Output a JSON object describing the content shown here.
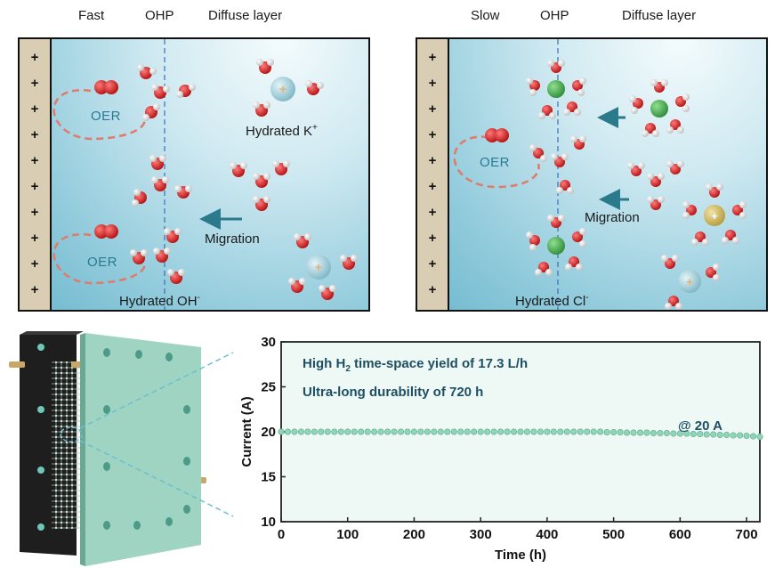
{
  "left_panel": {
    "headers": [
      "Fast",
      "OHP",
      "Diffuse layer"
    ],
    "oer_labels": [
      "OER",
      "OER"
    ],
    "hydrated_cation_label": "Hydrated K",
    "hydrated_cation_sup": "+",
    "migration_label": "Migration",
    "hydrated_anion_label": "Hydrated OH",
    "hydrated_anion_sup": "-",
    "electrode_signs": [
      "+",
      "+",
      "+",
      "+",
      "+",
      "+",
      "+",
      "+",
      "+",
      "+"
    ]
  },
  "right_panel": {
    "headers": [
      "Slow",
      "OHP",
      "Diffuse layer"
    ],
    "oer_label": "OER",
    "migration_label": "Migration",
    "hydrated_anion_label": "Hydrated Cl",
    "hydrated_anion_sup": "-",
    "electrode_signs": [
      "+",
      "+",
      "+",
      "+",
      "+",
      "+",
      "+",
      "+",
      "+",
      "+"
    ]
  },
  "annotations": {
    "yield_prefix": "High H",
    "yield_sub": "2",
    "yield_suffix": " time-space  yield of 17.3 L/h",
    "durability": "Ultra-long durability of 720 h",
    "current_note": "@ 20 A"
  },
  "colors": {
    "electrolyte_light": "#f4fbfd",
    "electrolyte_dark": "#6fb8cf",
    "electrode": "#d9ceb4",
    "oxygen": "#d11f1f",
    "hydrogen": "#f2f2f2",
    "potassium_ion": "#a9d3de",
    "chloride_ion": "#46ad54",
    "data_marker": "#8fd6b8",
    "arrow": "#2a7a8c",
    "oer_loop": "#e07b6b"
  },
  "chart_data": {
    "type": "scatter",
    "xlabel": "Time (h)",
    "ylabel": "Current (A)",
    "xlim": [
      0,
      720
    ],
    "ylim": [
      10,
      30
    ],
    "xticks": [
      0,
      100,
      200,
      300,
      400,
      500,
      600,
      700
    ],
    "yticks": [
      10,
      15,
      20,
      25,
      30
    ],
    "series": [
      {
        "x": [
          0,
          10,
          20,
          30,
          40,
          50,
          60,
          70,
          80,
          90,
          100,
          110,
          120,
          130,
          140,
          150,
          160,
          170,
          180,
          190,
          200,
          210,
          220,
          230,
          240,
          250,
          260,
          270,
          280,
          290,
          300,
          310,
          320,
          330,
          340,
          350,
          360,
          370,
          380,
          390,
          400,
          410,
          420,
          430,
          440,
          450,
          460,
          470,
          480,
          490,
          500,
          510,
          520,
          530,
          540,
          550,
          560,
          570,
          580,
          590,
          600,
          610,
          620,
          630,
          640,
          650,
          660,
          670,
          680,
          690,
          700,
          710,
          720
        ],
        "y": [
          20.0,
          20.0,
          20.0,
          20.0,
          20.0,
          20.0,
          20.0,
          20.0,
          20.0,
          20.0,
          20.0,
          20.0,
          20.0,
          20.0,
          20.0,
          20.0,
          20.0,
          20.0,
          20.0,
          20.0,
          20.0,
          20.0,
          20.0,
          20.0,
          20.0,
          20.0,
          20.0,
          20.0,
          20.0,
          20.0,
          20.0,
          20.0,
          20.0,
          20.0,
          20.0,
          20.0,
          20.0,
          20.0,
          20.0,
          20.0,
          20.0,
          20.0,
          20.0,
          20.0,
          20.0,
          20.0,
          20.0,
          20.0,
          20.0,
          19.95,
          19.95,
          19.95,
          19.9,
          19.9,
          19.9,
          19.9,
          19.85,
          19.85,
          19.85,
          19.8,
          19.8,
          19.8,
          19.75,
          19.75,
          19.7,
          19.7,
          19.65,
          19.65,
          19.6,
          19.6,
          19.55,
          19.5,
          19.45
        ]
      }
    ]
  }
}
